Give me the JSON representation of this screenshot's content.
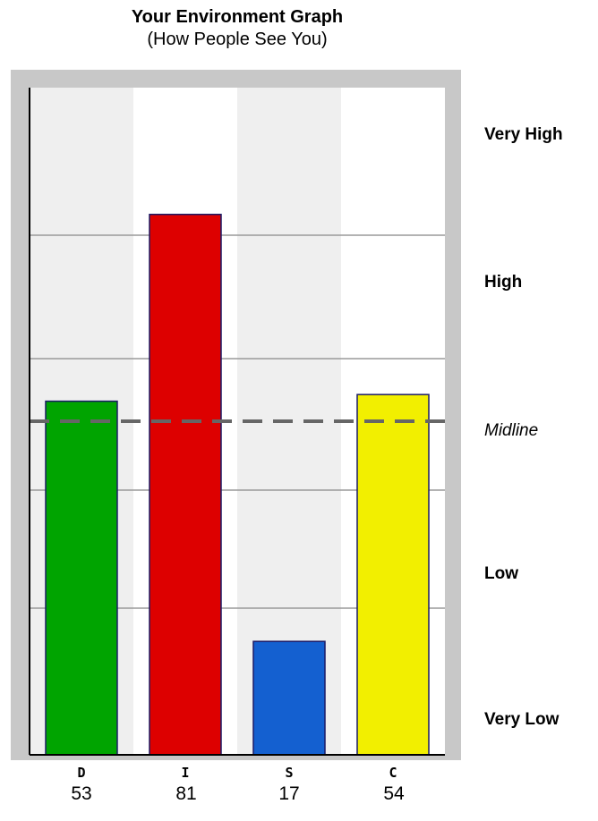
{
  "title": "Your Environment Graph",
  "subtitle": "(How People See You)",
  "level_labels": [
    {
      "text": "Very High",
      "style": "bold"
    },
    {
      "text": "High",
      "style": "bold"
    },
    {
      "text": "Midline",
      "style": "italic"
    },
    {
      "text": "Low",
      "style": "bold"
    },
    {
      "text": "Very Low",
      "style": "bold"
    }
  ],
  "chart_data": {
    "type": "bar",
    "title": "Your Environment Graph",
    "subtitle": "(How People See You)",
    "categories": [
      "D",
      "I",
      "S",
      "C"
    ],
    "values": [
      53,
      81,
      17,
      54
    ],
    "colors": [
      "#00a400",
      "#dd0000",
      "#1460d0",
      "#f2ef00"
    ],
    "ylim": [
      0,
      100
    ],
    "midline": 50,
    "grid": true
  }
}
